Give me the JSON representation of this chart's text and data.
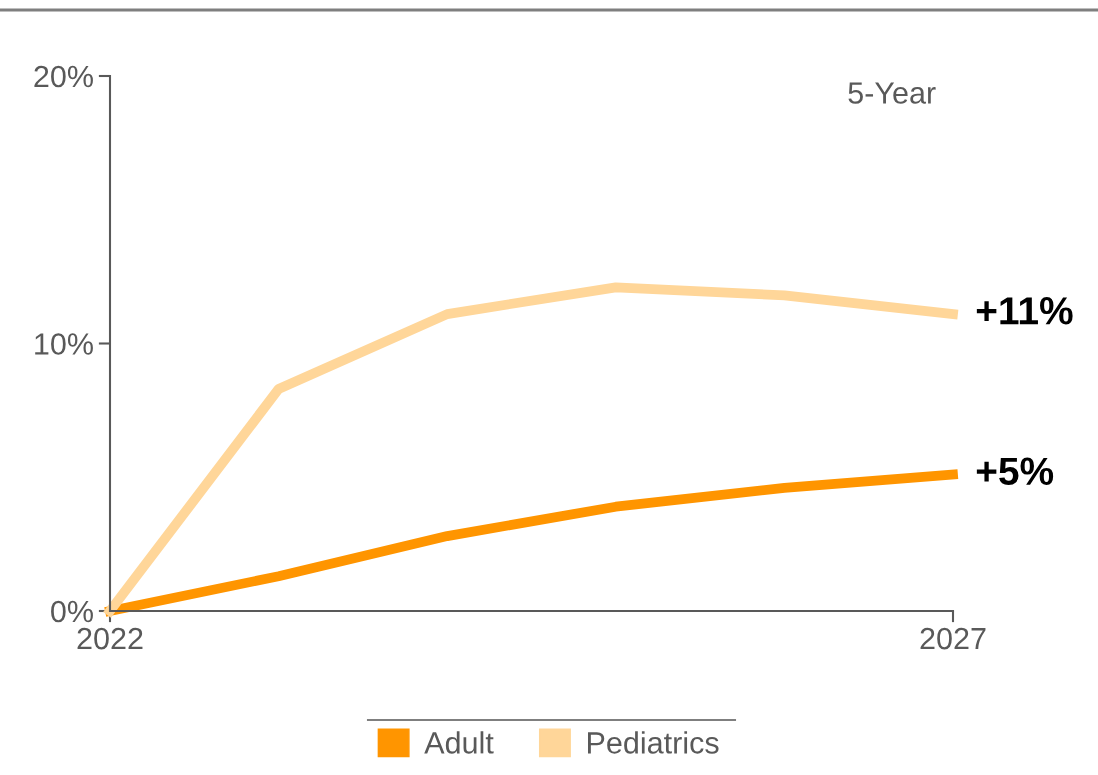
{
  "chart_data": {
    "type": "line",
    "x": [
      2022,
      2023,
      2024,
      2025,
      2026,
      2027
    ],
    "series": [
      {
        "name": "Adult",
        "color": "#ff9500",
        "values": [
          0,
          1.3,
          2.8,
          3.9,
          4.6,
          5.1
        ]
      },
      {
        "name": "Pediatrics",
        "color": "#ffd699",
        "values": [
          0,
          8.3,
          11.1,
          12.1,
          11.8,
          11.1
        ]
      }
    ],
    "xlim": [
      2022,
      2027
    ],
    "xticks": [
      2022,
      2027
    ],
    "ylim": [
      0,
      20
    ],
    "yticks": [
      {
        "value": 0,
        "label": "0%"
      },
      {
        "value": 10,
        "label": "10%"
      },
      {
        "value": 20,
        "label": "20%"
      }
    ],
    "annotations": [
      "5-Year",
      {
        "text": "+11%",
        "x": 2027,
        "y": 11.1
      },
      {
        "text": "+5%",
        "x": 2027,
        "y": 5.1
      }
    ],
    "grid": false,
    "legend": "bottom",
    "marker": "none",
    "line_style": "solid"
  }
}
